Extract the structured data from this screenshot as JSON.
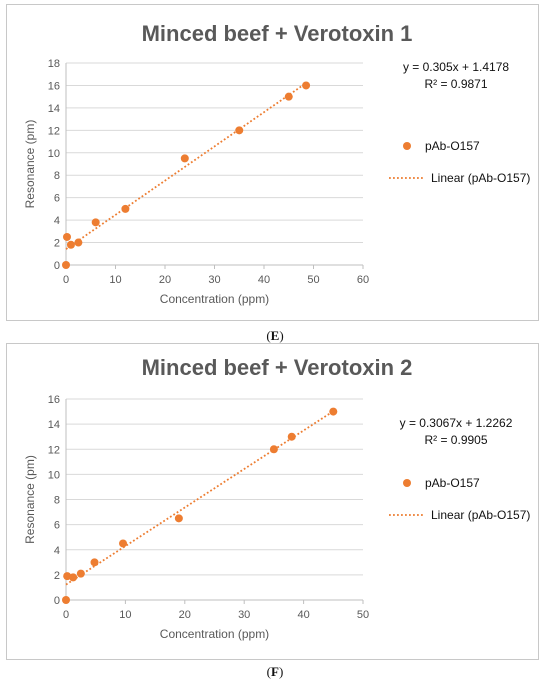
{
  "captions": [
    {
      "prefix": "(",
      "letter": "E",
      "suffix": ")"
    },
    {
      "prefix": "(",
      "letter": "F",
      "suffix": ")"
    }
  ],
  "colors": {
    "marker": "#ED7D31",
    "grid": "#D9D9D9",
    "axis": "#BFBFBF",
    "text": "#595959"
  },
  "chart_data": [
    {
      "type": "scatter",
      "title": "Minced beef + Verotoxin 1",
      "xlabel": "Concentration (ppm)",
      "ylabel": "Resonance (pm)",
      "xlim": [
        0,
        60
      ],
      "ylim": [
        0,
        18
      ],
      "xticks": [
        0,
        10,
        20,
        30,
        40,
        50,
        60
      ],
      "yticks": [
        0,
        2,
        4,
        6,
        8,
        10,
        12,
        14,
        16,
        18
      ],
      "grid": true,
      "legend_position": "right",
      "series": [
        {
          "name": "pAb-O157",
          "x": [
            0,
            0.2,
            1,
            2.5,
            6,
            12,
            24,
            35,
            45,
            48.5
          ],
          "y": [
            0,
            2.5,
            1.8,
            2,
            3.8,
            5,
            9.5,
            12,
            15,
            16
          ]
        }
      ],
      "trendline": {
        "name": "Linear (pAb-O157)",
        "slope": 0.305,
        "intercept": 1.4178,
        "x_range": [
          0,
          48.5
        ],
        "equation": "y = 0.305x + 1.4178",
        "r2": "R² = 0.9871"
      }
    },
    {
      "type": "scatter",
      "title": "Minced beef + Verotoxin 2",
      "xlabel": "Concentration (ppm)",
      "ylabel": "Resonance (pm)",
      "xlim": [
        0,
        50
      ],
      "ylim": [
        0,
        16
      ],
      "xticks": [
        0,
        10,
        20,
        30,
        40,
        50
      ],
      "yticks": [
        0,
        2,
        4,
        6,
        8,
        10,
        12,
        14,
        16
      ],
      "grid": true,
      "legend_position": "right",
      "series": [
        {
          "name": "pAb-O157",
          "x": [
            0,
            0.2,
            1.2,
            2.5,
            4.8,
            9.6,
            19,
            35,
            38,
            45
          ],
          "y": [
            0,
            1.9,
            1.8,
            2.1,
            3,
            4.5,
            6.5,
            12,
            13,
            15
          ]
        }
      ],
      "trendline": {
        "name": "Linear (pAb-O157)",
        "slope": 0.3067,
        "intercept": 1.2262,
        "x_range": [
          0,
          45
        ],
        "equation": "y = 0.3067x + 1.2262",
        "r2": "R² = 0.9905"
      }
    }
  ]
}
